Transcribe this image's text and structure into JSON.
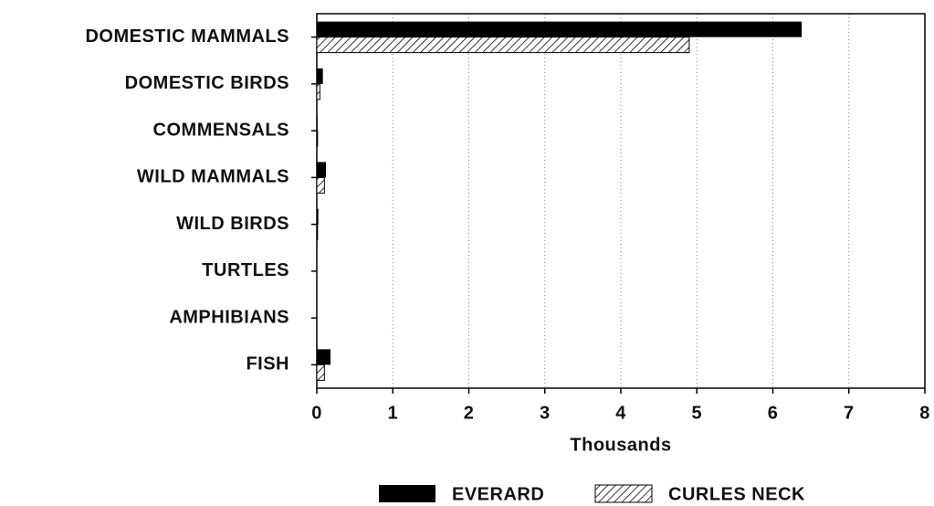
{
  "chart_data": {
    "type": "bar",
    "orientation": "horizontal",
    "categories": [
      "DOMESTIC MAMMALS",
      "DOMESTIC BIRDS",
      "COMMENSALS",
      "WILD MAMMALS",
      "WILD BIRDS",
      "TURTLES",
      "AMPHIBIANS",
      "FISH"
    ],
    "series": [
      {
        "name": "EVERARD",
        "color": "#000000",
        "hatch": false,
        "values": [
          6.38,
          0.08,
          0.01,
          0.12,
          0.02,
          0.005,
          0,
          0.18
        ]
      },
      {
        "name": "CURLES NECK",
        "color": "#000000",
        "hatch": true,
        "values": [
          4.9,
          0.04,
          0.01,
          0.1,
          0.01,
          0,
          0,
          0.1
        ]
      }
    ],
    "xlabel": "Thousands",
    "xlim": [
      0,
      8
    ],
    "xticks": [
      0,
      1,
      2,
      3,
      4,
      5,
      6,
      7,
      8
    ],
    "grid": true,
    "legend": "bottom"
  }
}
